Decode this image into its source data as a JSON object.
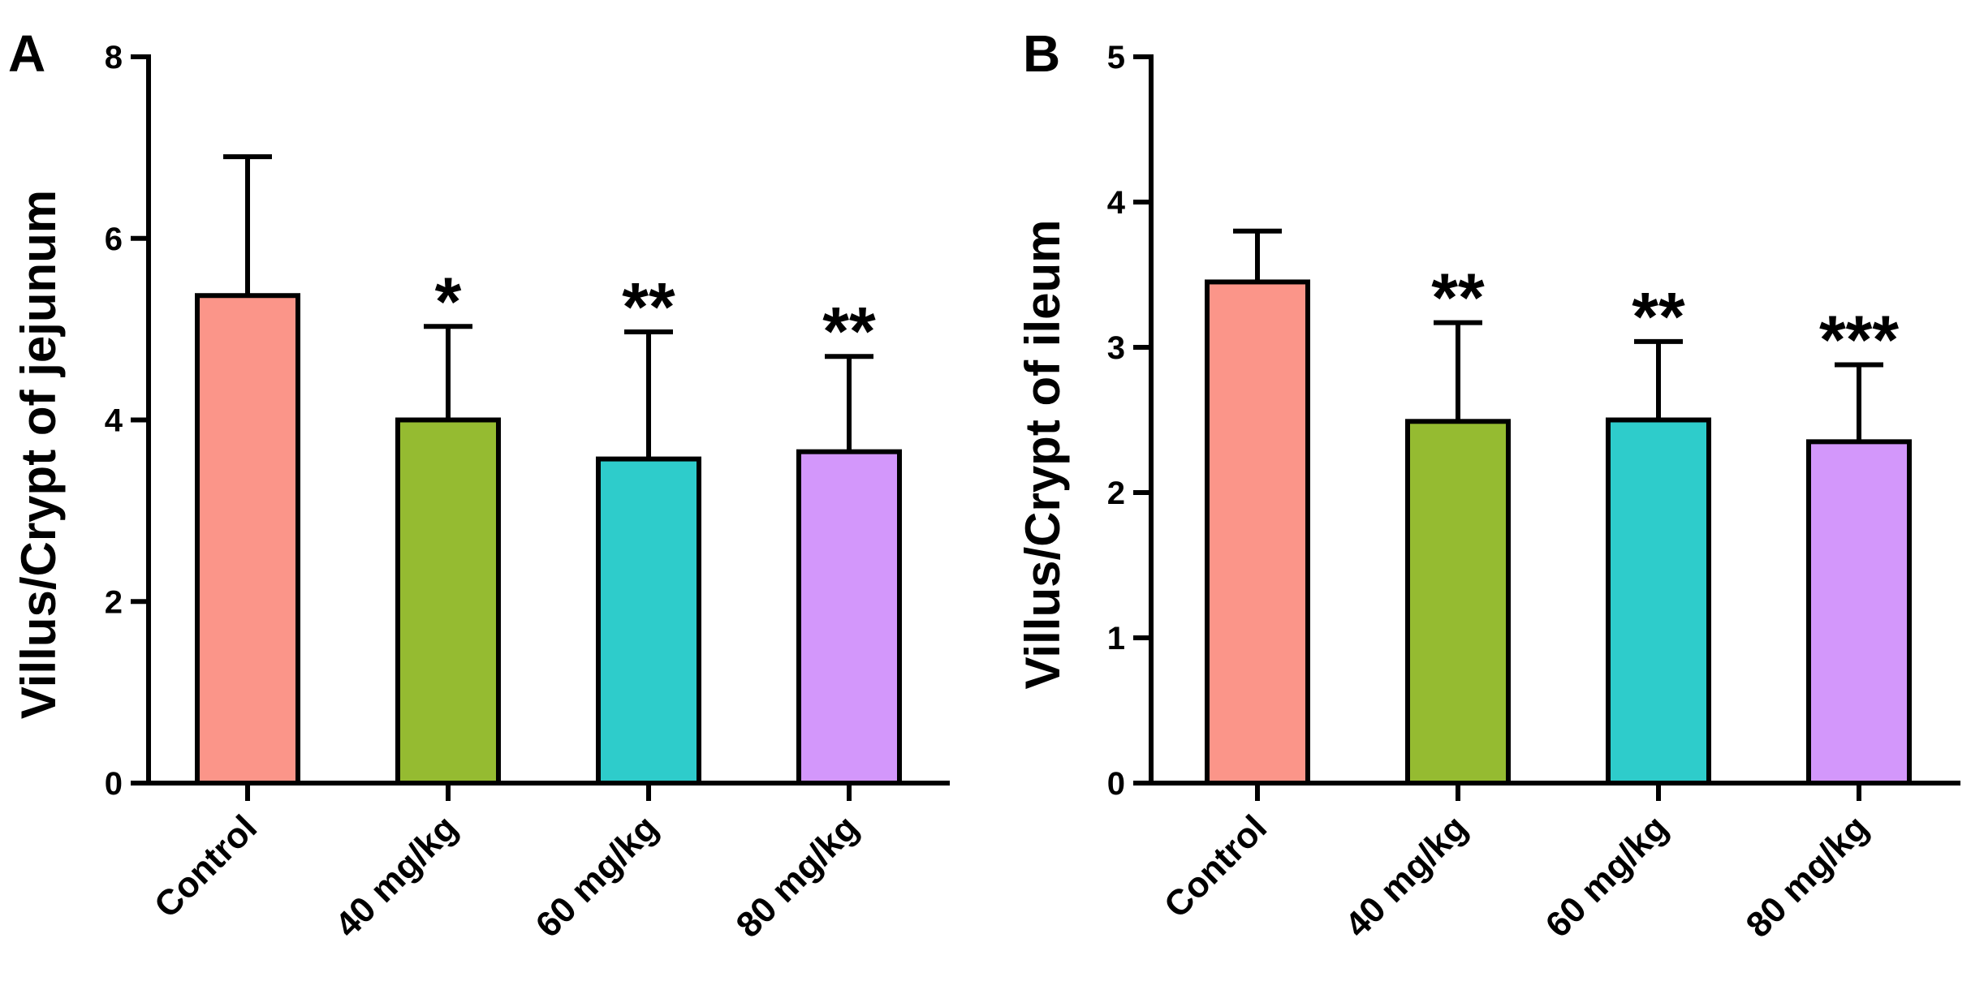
{
  "chart_data": [
    {
      "type": "bar",
      "panel": "A",
      "categories": [
        "Control",
        "40 mg/kg",
        "60 mg/kg",
        "80 mg/kg"
      ],
      "values": [
        5.37,
        4.0,
        3.57,
        3.65
      ],
      "errors": [
        1.53,
        1.03,
        1.4,
        1.05
      ],
      "significance": [
        "",
        "*",
        "**",
        "**"
      ],
      "colors": [
        "#fb9589",
        "#95bb31",
        "#2ecccb",
        "#d397fb"
      ],
      "ylabel": "Villus/Crypt of jejunum",
      "xlabel": "",
      "ylim": [
        0,
        8
      ],
      "yticks": [
        0,
        2,
        4,
        6,
        8
      ]
    },
    {
      "type": "bar",
      "panel": "B",
      "categories": [
        "Control",
        "40 mg/kg",
        "60 mg/kg",
        "80 mg/kg"
      ],
      "values": [
        3.45,
        2.49,
        2.5,
        2.35
      ],
      "errors": [
        0.35,
        0.68,
        0.54,
        0.53
      ],
      "significance": [
        "",
        "**",
        "**",
        "***"
      ],
      "colors": [
        "#fb9589",
        "#95bb31",
        "#2ecccb",
        "#d397fb"
      ],
      "ylabel": "Villus/Crypt of ileum",
      "xlabel": "",
      "ylim": [
        0,
        5
      ],
      "yticks": [
        0,
        1,
        2,
        3,
        4,
        5
      ]
    }
  ]
}
